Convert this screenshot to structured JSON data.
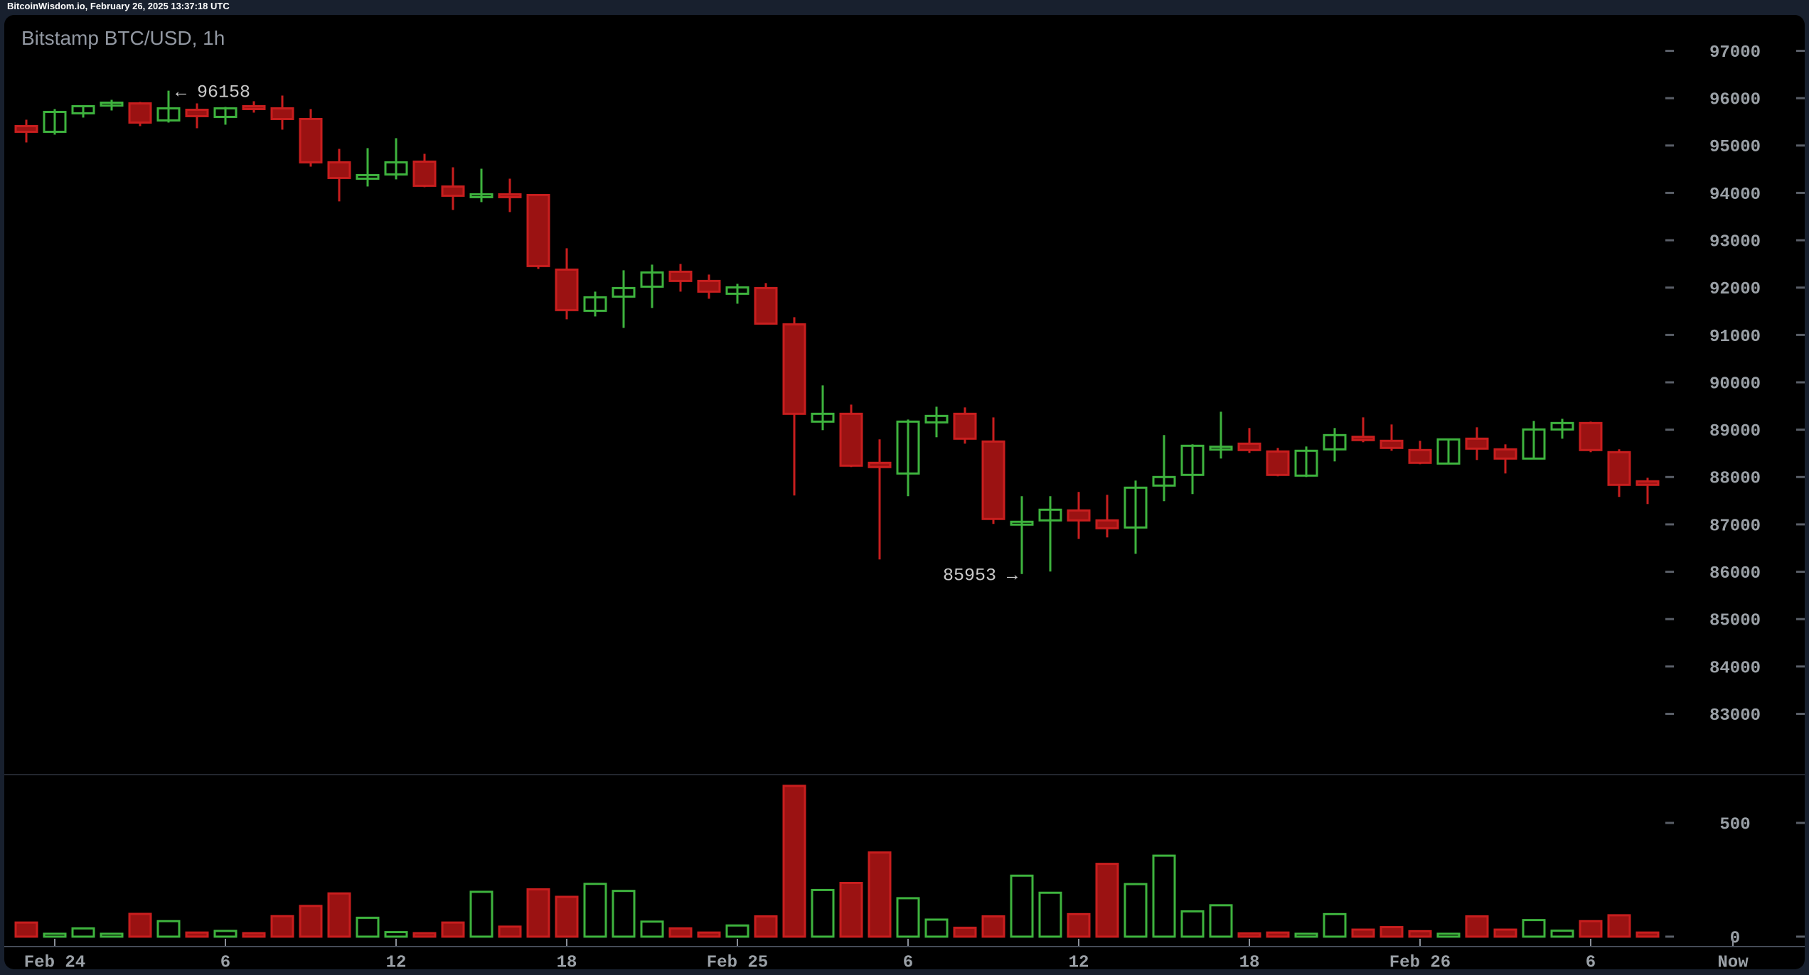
{
  "header": {
    "text": "BitcoinWisdom.io, February 26, 2025 13:37:18 UTC"
  },
  "chart": {
    "title": "Bitstamp BTC/USD, 1h"
  },
  "annotations": {
    "high_label": "← 96158",
    "low_label": "85953 →"
  },
  "colors": {
    "background_outer": "#18202e",
    "panel": "#000000",
    "up": "#3eb33e",
    "down": "#c81e1e",
    "down_fill": "#9b1212",
    "axis_text": "#9aa0a6",
    "tick": "#5a5f68",
    "x_tick": "#8a8f98",
    "divider": "#23272f",
    "axis_line": "#454b57"
  },
  "chart_data": {
    "type": "candlestick+volume",
    "title": "Bitstamp BTC/USD, 1h",
    "exchange": "Bitstamp",
    "pair": "BTC/USD",
    "interval": "1h",
    "price_axis": {
      "ticks": [
        97000,
        96000,
        95000,
        94000,
        93000,
        92000,
        91000,
        90000,
        89000,
        88000,
        87000,
        86000,
        85000,
        84000,
        83000
      ]
    },
    "volume_axis": {
      "ticks": [
        500,
        0
      ]
    },
    "x_axis": {
      "labels": [
        {
          "label": "Feb 24",
          "index": 1
        },
        {
          "label": "6",
          "index": 7
        },
        {
          "label": "12",
          "index": 13
        },
        {
          "label": "18",
          "index": 19
        },
        {
          "label": "Feb 25",
          "index": 25
        },
        {
          "label": "6",
          "index": 31
        },
        {
          "label": "12",
          "index": 37
        },
        {
          "label": "18",
          "index": 43
        },
        {
          "label": "Feb 26",
          "index": 49
        },
        {
          "label": "6",
          "index": 55
        },
        {
          "label": "Now",
          "index": null
        }
      ]
    },
    "annotations": {
      "high": {
        "index": 5,
        "price": 96158
      },
      "low": {
        "index": 35,
        "price": 85953
      }
    },
    "candle_format": [
      "open",
      "high",
      "low",
      "close",
      "volume"
    ],
    "candles": [
      [
        95410,
        95545,
        95065,
        95290,
        62
      ],
      [
        95290,
        95770,
        95230,
        95710,
        12
      ],
      [
        95680,
        95845,
        95590,
        95830,
        36
      ],
      [
        95860,
        95965,
        95740,
        95905,
        12
      ],
      [
        95890,
        95920,
        95410,
        95485,
        100
      ],
      [
        95530,
        96158,
        95485,
        95785,
        68
      ],
      [
        95755,
        95890,
        95365,
        95620,
        18
      ],
      [
        95605,
        95815,
        95440,
        95785,
        25
      ],
      [
        95830,
        95935,
        95695,
        95785,
        15
      ],
      [
        95785,
        96055,
        95335,
        95560,
        90
      ],
      [
        95560,
        95770,
        94555,
        94645,
        135
      ],
      [
        94645,
        94930,
        93820,
        94315,
        190
      ],
      [
        94300,
        94945,
        94135,
        94375,
        83
      ],
      [
        94390,
        95155,
        94285,
        94645,
        20
      ],
      [
        94660,
        94825,
        94120,
        94150,
        15
      ],
      [
        94135,
        94540,
        93640,
        93940,
        62
      ],
      [
        93940,
        94510,
        93805,
        93970,
        197
      ],
      [
        93970,
        94300,
        93595,
        93925,
        44
      ],
      [
        93955,
        93970,
        92395,
        92455,
        208
      ],
      [
        92380,
        92830,
        91330,
        91525,
        175
      ],
      [
        91510,
        91915,
        91390,
        91795,
        232
      ],
      [
        91810,
        92365,
        91150,
        91990,
        201
      ],
      [
        92020,
        92485,
        91570,
        92320,
        66
      ],
      [
        92335,
        92500,
        91915,
        92140,
        36
      ],
      [
        92140,
        92275,
        91765,
        91915,
        18
      ],
      [
        91870,
        92080,
        91660,
        92005,
        49
      ],
      [
        91990,
        92095,
        91225,
        91240,
        89
      ],
      [
        91225,
        91375,
        87610,
        89335,
        663
      ],
      [
        89170,
        89935,
        88990,
        89335,
        205
      ],
      [
        89335,
        89530,
        88210,
        88240,
        236
      ],
      [
        88300,
        88795,
        86260,
        88210,
        370
      ],
      [
        88075,
        89215,
        87595,
        89170,
        169
      ],
      [
        89155,
        89485,
        88840,
        89290,
        75
      ],
      [
        89335,
        89470,
        88705,
        88810,
        39
      ],
      [
        88750,
        89260,
        87010,
        87115,
        89
      ],
      [
        87025,
        87595,
        85953,
        87055,
        268
      ],
      [
        87085,
        87595,
        86005,
        87310,
        193
      ],
      [
        87295,
        87685,
        86695,
        87085,
        99
      ],
      [
        87085,
        87625,
        86725,
        86920,
        320
      ],
      [
        86935,
        87925,
        86380,
        87775,
        231
      ],
      [
        87820,
        88885,
        87490,
        88000,
        356
      ],
      [
        88045,
        88690,
        87640,
        88660,
        111
      ],
      [
        88585,
        89380,
        88390,
        88640,
        138
      ],
      [
        88705,
        89035,
        88510,
        88570,
        14
      ],
      [
        88540,
        88615,
        88015,
        88045,
        18
      ],
      [
        88030,
        88645,
        88000,
        88555,
        8
      ],
      [
        88585,
        89035,
        88330,
        88885,
        99
      ],
      [
        88850,
        89260,
        88735,
        88780,
        31
      ],
      [
        88765,
        89110,
        88555,
        88615,
        42
      ],
      [
        88570,
        88765,
        88270,
        88300,
        24
      ],
      [
        88285,
        88800,
        88280,
        88795,
        10
      ],
      [
        88810,
        89050,
        88360,
        88600,
        89
      ],
      [
        88585,
        88690,
        88075,
        88390,
        31
      ],
      [
        88390,
        89185,
        88375,
        89005,
        73
      ],
      [
        89005,
        89230,
        88810,
        89140,
        26
      ],
      [
        89140,
        89170,
        88525,
        88570,
        68
      ],
      [
        88525,
        88585,
        87580,
        87835,
        94
      ],
      [
        87910,
        87985,
        87430,
        87835,
        18
      ]
    ]
  }
}
